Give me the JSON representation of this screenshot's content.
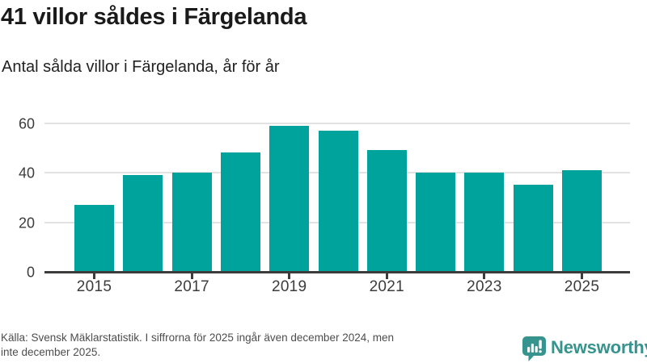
{
  "header": {
    "title": "41 villor såldes i Färgelanda",
    "subtitle": "Antal sålda villor i Färgelanda, år för år"
  },
  "chart_data": {
    "type": "bar",
    "title": "Antal sålda villor i Färgelanda, år för år",
    "categories": [
      "2015",
      "2016",
      "2017",
      "2018",
      "2019",
      "2020",
      "2021",
      "2022",
      "2023",
      "2024",
      "2025"
    ],
    "values": [
      27,
      39,
      40,
      48,
      59,
      57,
      49,
      40,
      40,
      35,
      41
    ],
    "xlabel": "",
    "ylabel": "",
    "ylim": [
      0,
      66
    ],
    "yticks": [
      0,
      20,
      40,
      60
    ],
    "xtick_labels": [
      "2015",
      "2017",
      "2019",
      "2021",
      "2023",
      "2025"
    ],
    "grid": true,
    "legend": false,
    "bar_color": "#00a39b"
  },
  "footer": {
    "source_line1": "Källa: Svensk Mäklarstatistik. I siffrorna för 2025 ingår även december 2024, men",
    "source_line2": "inte december 2025.",
    "brand_name": "Newsworthy"
  },
  "colors": {
    "accent_teal": "#00a39b",
    "brand_teal": "#37938d",
    "title_text": "#1a1a1a",
    "axis_text": "#3c3c3c",
    "axis_line": "#3c3c3c",
    "gridline": "#e2e2e2",
    "source_text": "#4d4d4d"
  }
}
